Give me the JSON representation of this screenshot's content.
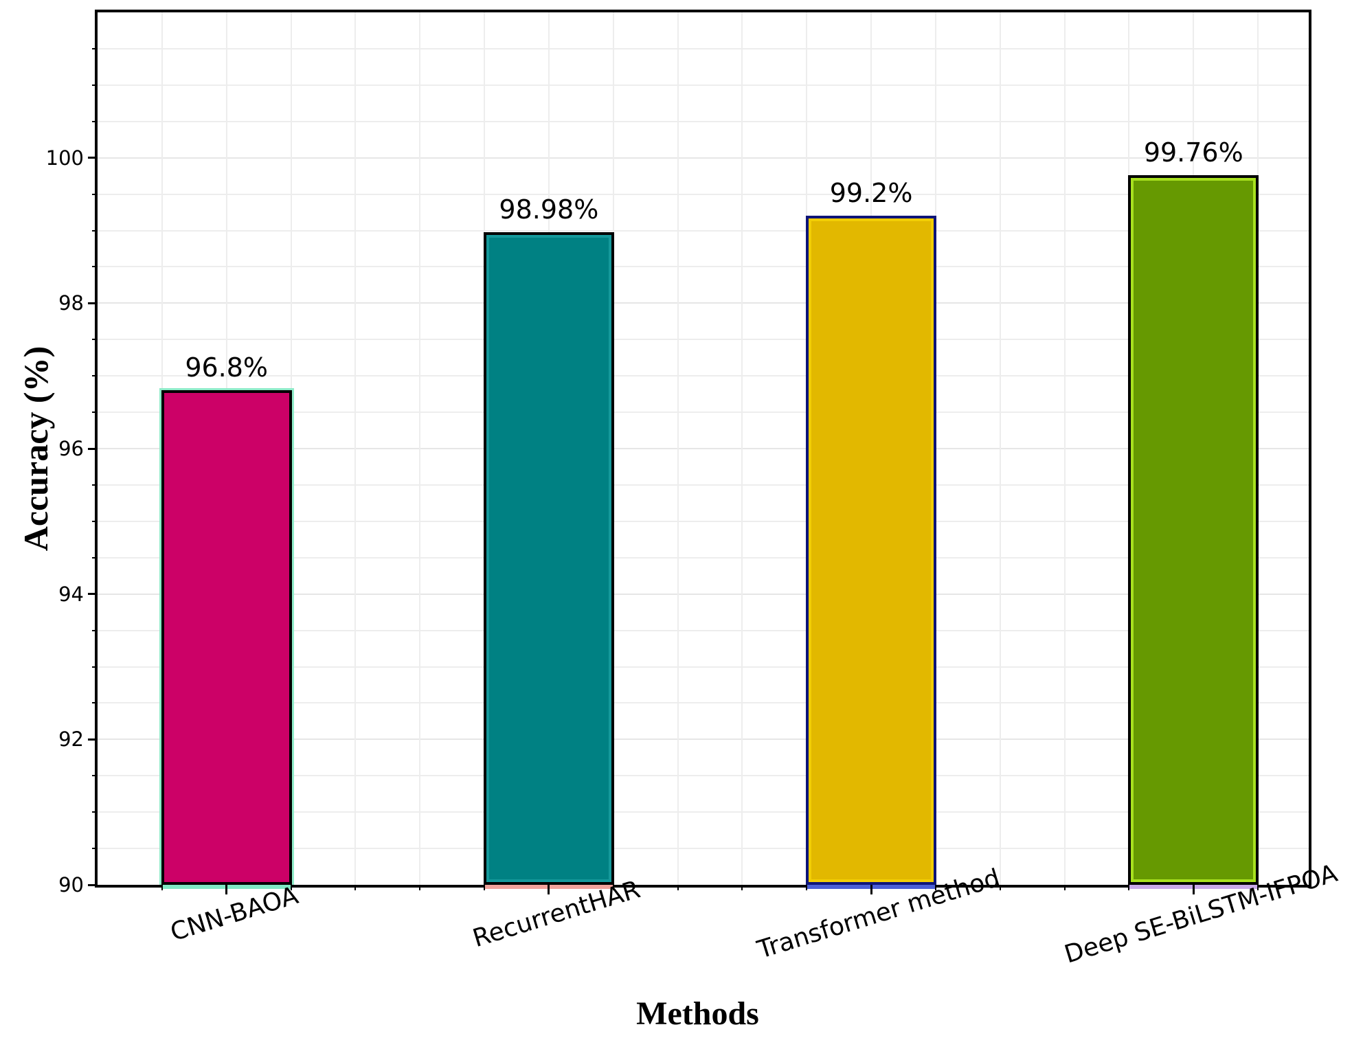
{
  "chart_data": {
    "type": "bar",
    "title": "",
    "xlabel": "Methods",
    "ylabel": "Accuracy (%)",
    "categories": [
      "CNN-BAOA",
      "RecurrentHAR",
      "Transformer method",
      "Deep SE-BiLSTM-IFPOA"
    ],
    "values": [
      96.8,
      98.98,
      99.2,
      99.76
    ],
    "value_labels": [
      "96.8%",
      "98.98%",
      "99.2%",
      "99.76%"
    ],
    "bar_colors": [
      "#CC0167",
      "#008183",
      "#E2B800",
      "#669901"
    ],
    "bar_edge_colors": [
      "#000000",
      "#000000",
      "#0E1578",
      "#000000"
    ],
    "bar_inner_edge_colors": [
      "",
      "#15999B",
      "#F2CE05",
      "#A8E11F"
    ],
    "bar_outer_edge_colors": [
      "#8FEBC9",
      "",
      "",
      ""
    ],
    "bar_base_strip_colors": [
      "#7FE9C4",
      "#F2A29B",
      "#4A5FD5",
      "#C9A9E9"
    ],
    "ylim": [
      90,
      102
    ],
    "yticks": [
      "90",
      "92",
      "94",
      "96",
      "98",
      "100"
    ],
    "y_minor_step": 0.5,
    "x_tick_label_rotation_deg": 17,
    "grid": true,
    "legend_position": "none",
    "axis_color": "#000000",
    "grid_color": "#ededed",
    "background_color": "#ffffff"
  }
}
